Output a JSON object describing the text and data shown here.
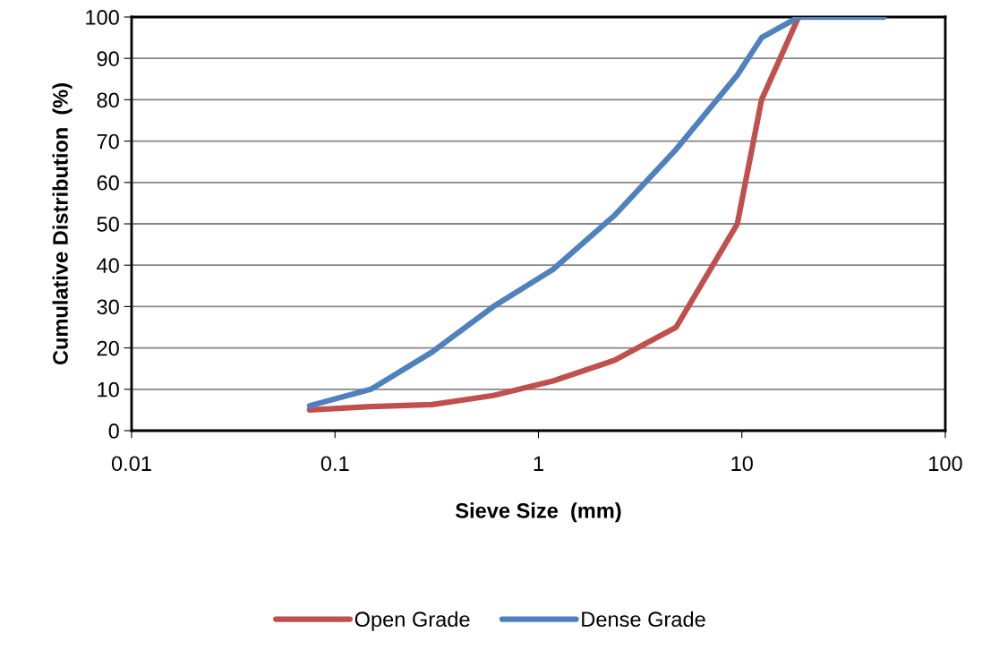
{
  "chart_data": {
    "type": "line",
    "xlabel": "Sieve Size  (mm)",
    "ylabel": "Cumulative Distribution  (%)",
    "log": "x",
    "xlim": [
      0.01,
      100
    ],
    "xticks": [
      {
        "value": 0.01,
        "label": "0.01"
      },
      {
        "value": 0.1,
        "label": "0.1"
      },
      {
        "value": 1,
        "label": "1"
      },
      {
        "value": 10,
        "label": "10"
      },
      {
        "value": 100,
        "label": "100"
      }
    ],
    "ylim": [
      0,
      100
    ],
    "yticks": [
      0,
      10,
      20,
      30,
      40,
      50,
      60,
      70,
      80,
      90,
      100
    ],
    "grid": "y",
    "legend": "bottom",
    "marker": "none",
    "line_style": "solid",
    "series": [
      {
        "name": "Open Grade",
        "color": "#c0504d",
        "x": [
          0.075,
          0.15,
          0.3,
          0.6,
          1.18,
          2.36,
          4.75,
          9.5,
          12.5,
          19
        ],
        "values": [
          5,
          5.8,
          6.3,
          8.5,
          12,
          17,
          25,
          50,
          80,
          100
        ]
      },
      {
        "name": "Dense Grade",
        "color": "#4f81bd",
        "x": [
          0.075,
          0.15,
          0.3,
          0.6,
          1.18,
          2.36,
          4.75,
          9.5,
          12.5,
          19,
          50
        ],
        "values": [
          6,
          10,
          19,
          30,
          39,
          52,
          68,
          86,
          95,
          100,
          100
        ]
      }
    ]
  }
}
